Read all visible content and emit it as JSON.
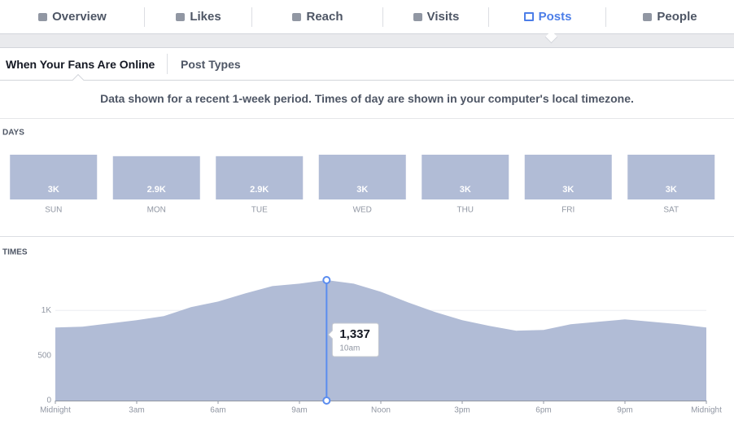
{
  "tabs": [
    {
      "label": "Overview"
    },
    {
      "label": "Likes"
    },
    {
      "label": "Reach"
    },
    {
      "label": "Visits"
    },
    {
      "label": "Posts",
      "active": true
    },
    {
      "label": "People"
    }
  ],
  "subtabs": [
    {
      "label": "When Your Fans Are Online",
      "active": true
    },
    {
      "label": "Post Types"
    }
  ],
  "note": "Data shown for a recent 1-week period. Times of day are shown in your computer's local timezone.",
  "chart_data": [
    {
      "type": "bar",
      "title": "DAYS",
      "color": "#b1bcd6",
      "categories": [
        "SUN",
        "MON",
        "TUE",
        "WED",
        "THU",
        "FRI",
        "SAT"
      ],
      "values": [
        3000,
        2900,
        2900,
        3000,
        3000,
        3000,
        3000
      ],
      "value_labels": [
        "3K",
        "2.9K",
        "2.9K",
        "3K",
        "3K",
        "3K",
        "3K"
      ]
    },
    {
      "type": "area",
      "title": "TIMES",
      "color": "#b1bcd6",
      "grid": true,
      "x": [
        0,
        1,
        2,
        3,
        4,
        5,
        6,
        7,
        8,
        9,
        10,
        11,
        12,
        13,
        14,
        15,
        16,
        17,
        18,
        19,
        20,
        21,
        22,
        23,
        24
      ],
      "values": [
        811,
        820,
        856,
        892,
        937,
        1036,
        1099,
        1189,
        1270,
        1297,
        1337,
        1297,
        1207,
        1090,
        982,
        892,
        829,
        775,
        784,
        847,
        874,
        901,
        874,
        847,
        811
      ],
      "xlim": [
        0,
        24
      ],
      "xticks": [
        {
          "value": 0,
          "label": "Midnight"
        },
        {
          "value": 3,
          "label": "3am"
        },
        {
          "value": 6,
          "label": "6am"
        },
        {
          "value": 9,
          "label": "9am"
        },
        {
          "value": 12,
          "label": "Noon"
        },
        {
          "value": 15,
          "label": "3pm"
        },
        {
          "value": 18,
          "label": "6pm"
        },
        {
          "value": 21,
          "label": "9pm"
        },
        {
          "value": 24,
          "label": "Midnight"
        }
      ],
      "ylim": [
        0,
        1400
      ],
      "yticks": [
        0,
        500,
        {
          "value": 1000,
          "label": "1K"
        }
      ],
      "tooltip": {
        "x": 10,
        "value": 1337,
        "label": "1,337",
        "x_label": "10am",
        "color": "#5b8def"
      }
    }
  ]
}
